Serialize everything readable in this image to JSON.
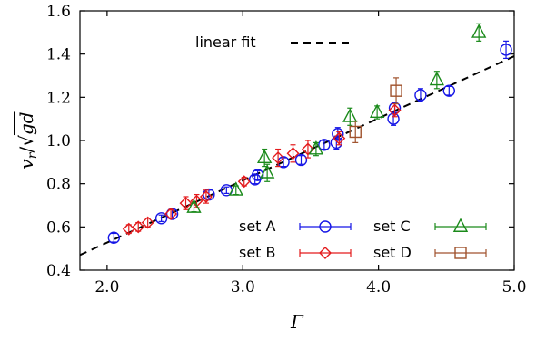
{
  "chart_data": {
    "type": "scatter",
    "xlabel": "Γ",
    "ylabel": "v_r/√(gd)",
    "xlim": [
      1.8,
      5.0
    ],
    "ylim": [
      0.4,
      1.6
    ],
    "x_ticks": [
      "2.0",
      "3.0",
      "4.0",
      "5.0"
    ],
    "x_tick_values": [
      2.0,
      3.0,
      4.0,
      5.0
    ],
    "y_ticks": [
      "0.4",
      "0.6",
      "0.8",
      "1.0",
      "1.2",
      "1.4",
      "1.6"
    ],
    "y_tick_values": [
      0.4,
      0.6,
      0.8,
      1.0,
      1.2,
      1.4,
      1.6
    ],
    "grid": false,
    "fit": {
      "label": "linear fit",
      "x": [
        1.8,
        5.0
      ],
      "y": [
        0.47,
        1.39
      ]
    },
    "series": [
      {
        "name": "set A",
        "marker": "circle",
        "color": "#1515e6",
        "points": [
          {
            "x": 2.05,
            "y": 0.55,
            "err": 0.02
          },
          {
            "x": 2.4,
            "y": 0.64,
            "err": 0.015
          },
          {
            "x": 2.48,
            "y": 0.66,
            "err": 0.02
          },
          {
            "x": 2.75,
            "y": 0.75,
            "err": 0.02
          },
          {
            "x": 2.88,
            "y": 0.77,
            "err": 0.015
          },
          {
            "x": 3.09,
            "y": 0.82,
            "err": 0.02
          },
          {
            "x": 3.11,
            "y": 0.84,
            "err": 0.02
          },
          {
            "x": 3.3,
            "y": 0.9,
            "err": 0.02
          },
          {
            "x": 3.43,
            "y": 0.91,
            "err": 0.02
          },
          {
            "x": 3.6,
            "y": 0.98,
            "err": 0.02
          },
          {
            "x": 3.69,
            "y": 0.99,
            "err": 0.03
          },
          {
            "x": 3.7,
            "y": 1.03,
            "err": 0.03
          },
          {
            "x": 4.11,
            "y": 1.1,
            "err": 0.03
          },
          {
            "x": 4.12,
            "y": 1.15,
            "err": 0.02
          },
          {
            "x": 4.31,
            "y": 1.21,
            "err": 0.03
          },
          {
            "x": 4.52,
            "y": 1.23,
            "err": 0.02
          },
          {
            "x": 4.94,
            "y": 1.42,
            "err": 0.04
          }
        ]
      },
      {
        "name": "set B",
        "marker": "diamond",
        "color": "#e31a1c",
        "points": [
          {
            "x": 2.16,
            "y": 0.59,
            "err": 0.02
          },
          {
            "x": 2.23,
            "y": 0.6,
            "err": 0.02
          },
          {
            "x": 2.3,
            "y": 0.62,
            "err": 0.02
          },
          {
            "x": 2.47,
            "y": 0.66,
            "err": 0.02
          },
          {
            "x": 2.58,
            "y": 0.71,
            "err": 0.03
          },
          {
            "x": 2.66,
            "y": 0.72,
            "err": 0.03
          },
          {
            "x": 2.73,
            "y": 0.74,
            "err": 0.03
          },
          {
            "x": 3.01,
            "y": 0.81,
            "err": 0.02
          },
          {
            "x": 3.26,
            "y": 0.92,
            "err": 0.04
          },
          {
            "x": 3.37,
            "y": 0.94,
            "err": 0.04
          },
          {
            "x": 3.48,
            "y": 0.96,
            "err": 0.04
          },
          {
            "x": 3.71,
            "y": 1.01,
            "err": 0.03
          },
          {
            "x": 4.12,
            "y": 1.14,
            "err": 0.03
          }
        ]
      },
      {
        "name": "set C",
        "marker": "triangle",
        "color": "#1a8a1a",
        "points": [
          {
            "x": 2.64,
            "y": 0.69,
            "err": 0.02
          },
          {
            "x": 2.95,
            "y": 0.77,
            "err": 0.02
          },
          {
            "x": 3.16,
            "y": 0.92,
            "err": 0.04
          },
          {
            "x": 3.18,
            "y": 0.85,
            "err": 0.04
          },
          {
            "x": 3.54,
            "y": 0.96,
            "err": 0.03
          },
          {
            "x": 3.79,
            "y": 1.11,
            "err": 0.04
          },
          {
            "x": 3.99,
            "y": 1.13,
            "err": 0.03
          },
          {
            "x": 4.43,
            "y": 1.28,
            "err": 0.04
          },
          {
            "x": 4.74,
            "y": 1.5,
            "err": 0.04
          }
        ]
      },
      {
        "name": "set D",
        "marker": "square",
        "color": "#a0522d",
        "points": [
          {
            "x": 3.83,
            "y": 1.04,
            "err": 0.05
          },
          {
            "x": 4.13,
            "y": 1.23,
            "err": 0.06
          }
        ]
      }
    ],
    "legend": {
      "position": "bottom-right",
      "order": [
        "set A",
        "set C",
        "set B",
        "set D"
      ]
    }
  }
}
